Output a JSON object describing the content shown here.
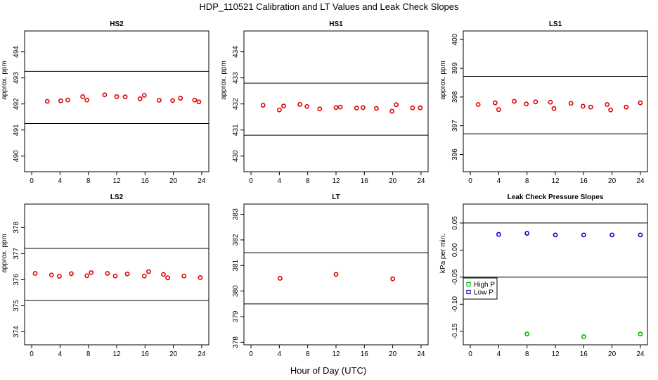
{
  "figure": {
    "title": "HDP_110521  Calibration and LT Values and Leak Check Slopes",
    "xlabel": "Hour of Day (UTC)"
  },
  "chart_data": [
    {
      "type": "scatter",
      "title": "HS2",
      "ylabel": "approx. ppm",
      "xlim": [
        -1,
        25
      ],
      "ylim": [
        489.4,
        494.8
      ],
      "xticks": [
        0,
        4,
        8,
        12,
        16,
        20,
        24
      ],
      "yticks": [
        490,
        491,
        492,
        493,
        494
      ],
      "hlines": [
        493.25,
        491.25
      ],
      "series": [
        {
          "color": "#e00000",
          "x": [
            2.2,
            4.1,
            5.1,
            7.2,
            7.8,
            10.3,
            12.0,
            13.2,
            15.3,
            15.9,
            18.0,
            19.9,
            21.0,
            23.0,
            23.6
          ],
          "y": [
            492.1,
            492.12,
            492.15,
            492.28,
            492.15,
            492.35,
            492.28,
            492.27,
            492.2,
            492.33,
            492.14,
            492.13,
            492.22,
            492.15,
            492.08
          ]
        }
      ]
    },
    {
      "type": "scatter",
      "title": "HS1",
      "ylabel": "approx. ppm",
      "xlim": [
        -1,
        25
      ],
      "ylim": [
        429.4,
        434.8
      ],
      "xticks": [
        0,
        4,
        8,
        12,
        16,
        20,
        24
      ],
      "yticks": [
        430,
        431,
        432,
        433,
        434
      ],
      "hlines": [
        432.8,
        430.8
      ],
      "series": [
        {
          "color": "#e00000",
          "x": [
            1.7,
            4.0,
            4.6,
            6.9,
            7.9,
            9.7,
            12.0,
            12.6,
            14.9,
            15.8,
            17.7,
            19.9,
            20.5,
            22.8,
            23.9
          ],
          "y": [
            431.95,
            431.77,
            431.92,
            431.98,
            431.9,
            431.81,
            431.86,
            431.88,
            431.84,
            431.86,
            431.83,
            431.72,
            431.97,
            431.85,
            431.85
          ]
        }
      ]
    },
    {
      "type": "scatter",
      "title": "LS1",
      "ylabel": "approx. ppm",
      "xlim": [
        -1,
        25
      ],
      "ylim": [
        395.4,
        400.3
      ],
      "xticks": [
        0,
        4,
        8,
        12,
        16,
        20,
        24
      ],
      "yticks": [
        396,
        397,
        398,
        399,
        400
      ],
      "hlines": [
        398.72,
        396.72
      ],
      "series": [
        {
          "color": "#e00000",
          "x": [
            1.1,
            3.5,
            4.0,
            6.2,
            7.9,
            9.2,
            11.3,
            11.8,
            14.2,
            15.9,
            17.0,
            19.3,
            19.8,
            22.0,
            24.0
          ],
          "y": [
            397.74,
            397.8,
            397.56,
            397.85,
            397.76,
            397.83,
            397.82,
            397.6,
            397.78,
            397.68,
            397.65,
            397.74,
            397.55,
            397.65,
            397.8
          ]
        }
      ]
    },
    {
      "type": "scatter",
      "title": "LS2",
      "ylabel": "approx. ppm",
      "xlim": [
        -1,
        25
      ],
      "ylim": [
        373.5,
        378.9
      ],
      "xticks": [
        0,
        4,
        8,
        12,
        16,
        20,
        24
      ],
      "yticks": [
        374,
        375,
        376,
        377,
        378
      ],
      "hlines": [
        377.2,
        375.2
      ],
      "series": [
        {
          "color": "#e00000",
          "x": [
            0.5,
            2.8,
            3.9,
            5.6,
            7.8,
            8.4,
            10.7,
            11.8,
            13.5,
            15.9,
            16.5,
            18.6,
            19.2,
            21.5,
            23.8
          ],
          "y": [
            376.24,
            376.18,
            376.13,
            376.23,
            376.15,
            376.27,
            376.24,
            376.14,
            376.22,
            376.14,
            376.31,
            376.2,
            376.07,
            376.14,
            376.08
          ]
        }
      ]
    },
    {
      "type": "scatter",
      "title": "LT",
      "ylabel": "",
      "xlim": [
        -1,
        25
      ],
      "ylim": [
        377.9,
        383.4
      ],
      "xticks": [
        0,
        4,
        8,
        12,
        16,
        20,
        24
      ],
      "yticks": [
        378,
        379,
        380,
        381,
        382,
        383
      ],
      "hlines": [
        381.5,
        379.5
      ],
      "series": [
        {
          "color": "#e00000",
          "x": [
            4.1,
            12.0,
            20.0
          ],
          "y": [
            380.5,
            380.65,
            380.48
          ]
        }
      ]
    },
    {
      "type": "scatter",
      "title": "Leak Check Pressure Slopes",
      "ylabel": "kPa per min.",
      "xlim": [
        -1,
        25
      ],
      "ylim": [
        -0.175,
        0.085
      ],
      "xticks": [
        0,
        4,
        8,
        12,
        16,
        20,
        24
      ],
      "yticks": [
        -0.15,
        -0.1,
        -0.05,
        0.0,
        0.05
      ],
      "ytick_labels": [
        "-0.15",
        "-0.10",
        "-0.05",
        "0.00",
        "0.05"
      ],
      "hlines": [
        0.05,
        -0.05
      ],
      "legend": {
        "placement": "left",
        "entries": [
          "High P",
          "Low P"
        ]
      },
      "series": [
        {
          "name": "High P",
          "color": "#00bb00",
          "x": [
            8,
            16,
            24
          ],
          "y": [
            -0.155,
            -0.16,
            -0.155
          ]
        },
        {
          "name": "Low P",
          "color": "#0000cc",
          "x": [
            4,
            8,
            12,
            16,
            20,
            24
          ],
          "y": [
            0.029,
            0.031,
            0.028,
            0.028,
            0.028,
            0.028
          ]
        }
      ]
    }
  ]
}
